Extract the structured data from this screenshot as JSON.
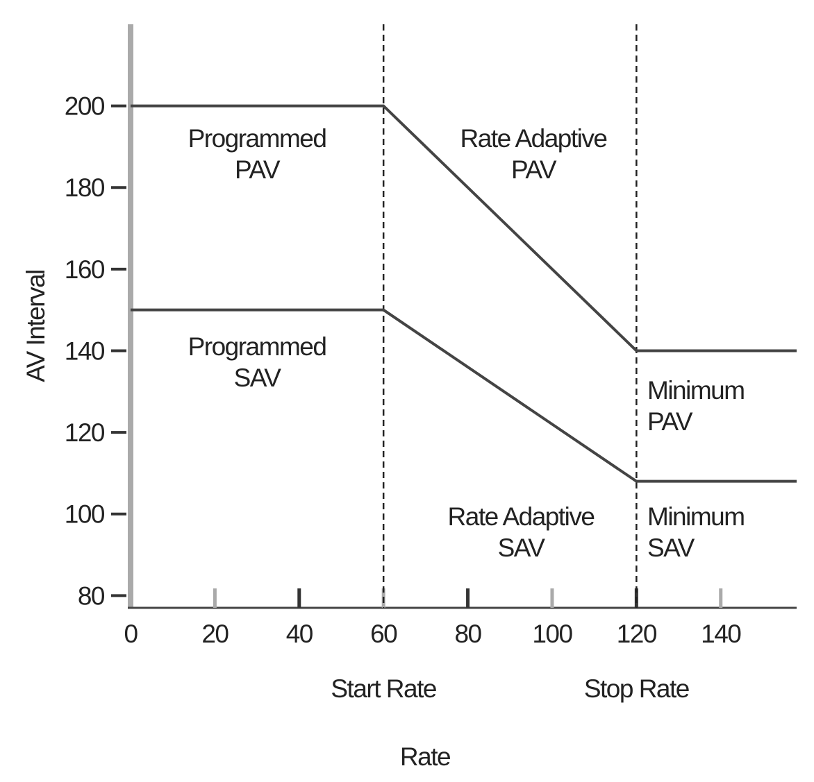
{
  "chart_data": {
    "type": "line",
    "x_label": "Rate",
    "y_label": "AV Interval",
    "x": [
      0,
      60,
      120,
      158
    ],
    "series": [
      {
        "color": "#444444",
        "values": [
          200,
          200,
          140,
          140
        ]
      },
      {
        "color": "#444444",
        "values": [
          150,
          150,
          108,
          108
        ]
      }
    ],
    "xlim": [
      0,
      158
    ],
    "ylim": [
      77,
      220
    ],
    "xticks": [
      0,
      20,
      40,
      60,
      80,
      100,
      120,
      140
    ],
    "yticks": [
      80,
      100,
      120,
      140,
      160,
      180,
      200
    ],
    "vlines": [
      {
        "x": 60,
        "label": "Start Rate"
      },
      {
        "x": 120,
        "label": "Stop Rate"
      }
    ],
    "annotations": [
      {
        "lines": [
          "Programmed",
          "PAV"
        ]
      },
      {
        "lines": [
          "Rate Adaptive",
          "PAV"
        ]
      },
      {
        "lines": [
          "Programmed",
          "SAV"
        ]
      },
      {
        "lines": [
          "Minimum",
          "PAV"
        ]
      },
      {
        "lines": [
          "Rate Adaptive",
          "SAV"
        ]
      },
      {
        "lines": [
          "Minimum",
          "SAV"
        ]
      }
    ]
  }
}
